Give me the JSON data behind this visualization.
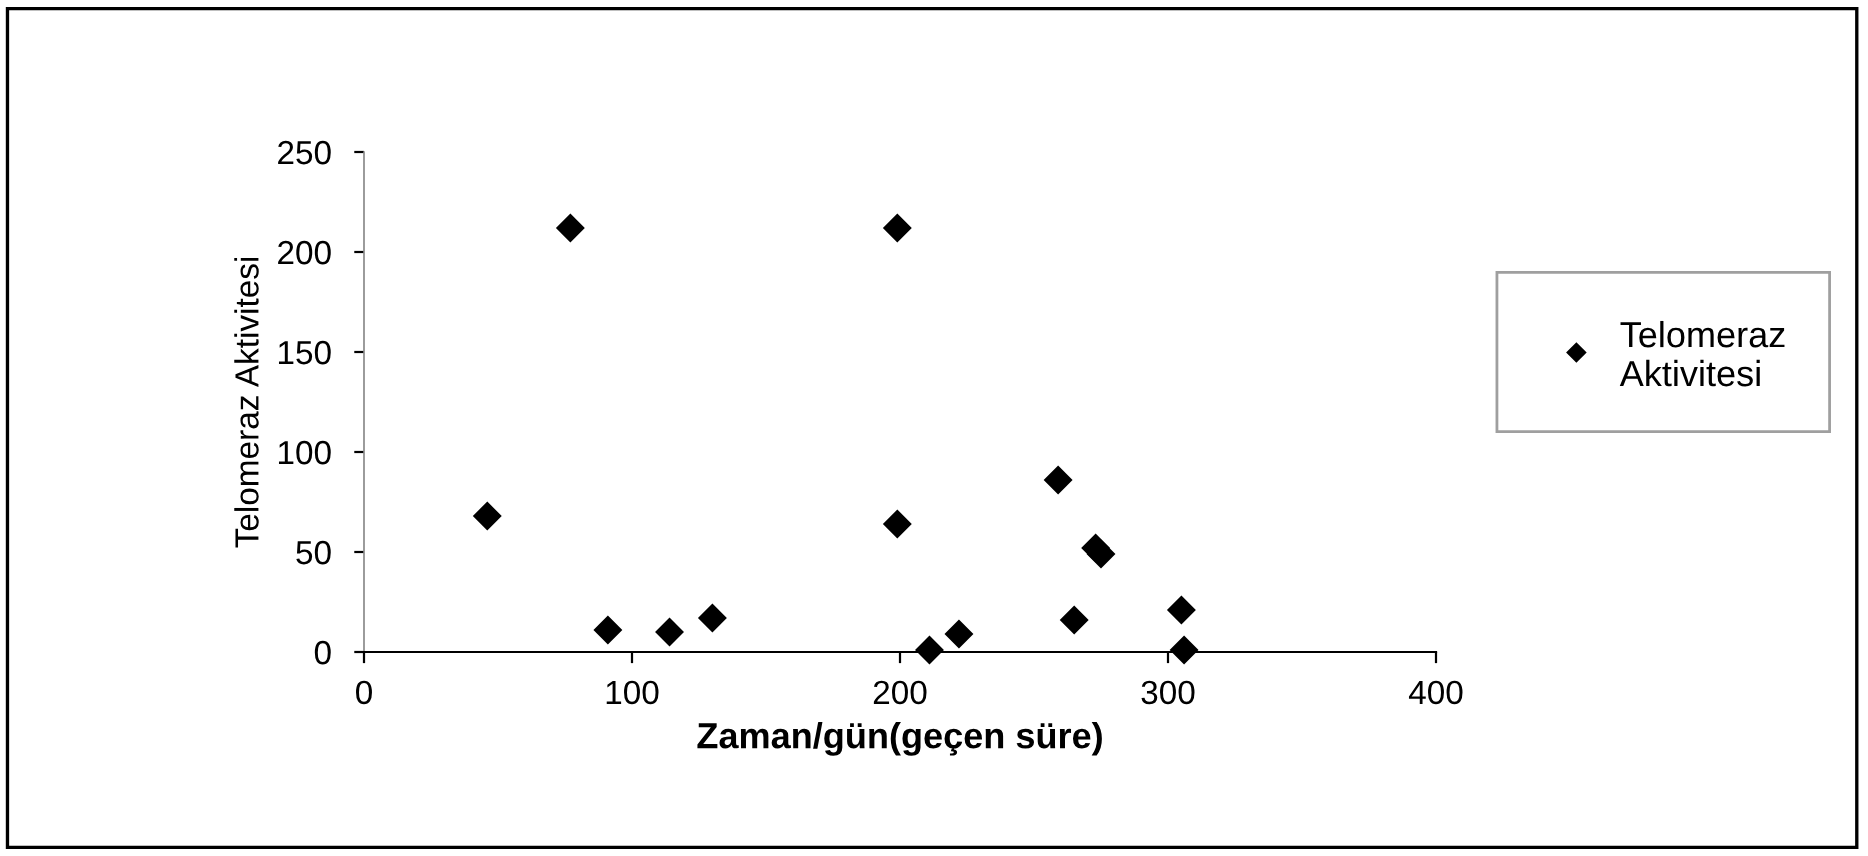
{
  "chart_data": {
    "type": "scatter",
    "xlabel": "Zaman/gün(geçen süre)",
    "ylabel": "Telomeraz Aktivitesi",
    "series": [
      {
        "name": "Telomeraz Aktivitesi",
        "color": "#000000",
        "x": [
          46,
          77,
          91,
          114,
          130,
          199,
          199,
          211,
          222,
          259,
          265,
          273,
          275,
          305,
          306
        ],
        "values": [
          68,
          212,
          11,
          10,
          17,
          212,
          64,
          1,
          9,
          86,
          16,
          52,
          49,
          21,
          1
        ]
      }
    ],
    "xlim": [
      0,
      400
    ],
    "xticks": [
      0,
      100,
      200,
      300,
      400
    ],
    "ylim": [
      0,
      250
    ],
    "yticks": [
      0,
      50,
      100,
      150,
      200,
      250
    ],
    "marker": "diamond",
    "grid": false,
    "legend": "right"
  }
}
